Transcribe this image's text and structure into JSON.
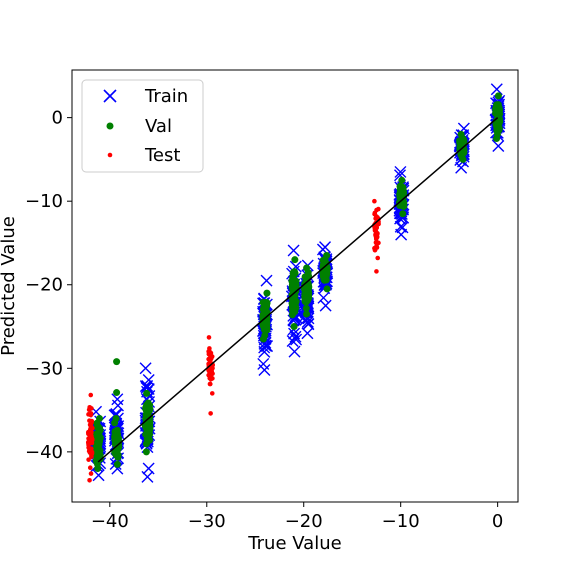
{
  "chart_data": {
    "type": "scatter",
    "title": "",
    "xlabel": "True Value",
    "ylabel": "Predicted Value",
    "xlim": [
      -43.9,
      2.1
    ],
    "ylim": [
      -46.0,
      5.7
    ],
    "xticks": [
      -40,
      -30,
      -20,
      -10,
      0
    ],
    "yticks": [
      -40,
      -30,
      -20,
      -10,
      0
    ],
    "xtick_labels": [
      "−40",
      "−30",
      "−20",
      "−10",
      "0"
    ],
    "ytick_labels": [
      "−40",
      "−30",
      "−20",
      "−10",
      "0"
    ],
    "grid": false,
    "legend": {
      "placement": "top-left",
      "entries": [
        {
          "label": "Train",
          "marker": "x",
          "color": "#0000ff"
        },
        {
          "label": "Val",
          "marker": "o",
          "color": "#008000"
        },
        {
          "label": "Test",
          "marker": ".",
          "color": "#ff0000"
        }
      ]
    },
    "reference_line": {
      "from": [
        -41.2,
        -41.2
      ],
      "to": [
        0,
        0
      ],
      "color": "#000000"
    },
    "series": [
      {
        "name": "Train",
        "marker": "x",
        "color": "#0000ff",
        "groups": [
          {
            "x": 0.0,
            "y_range": [
              -3.4,
              3.4
            ]
          },
          {
            "x": -3.7,
            "y_range": [
              -6.0,
              -1.3
            ]
          },
          {
            "x": -9.9,
            "y_range": [
              -14.0,
              -6.5
            ]
          },
          {
            "x": -17.8,
            "y_range": [
              -22.5,
              -15.5
            ]
          },
          {
            "x": -19.7,
            "y_range": [
              -25.8,
              -17.7
            ]
          },
          {
            "x": -21.0,
            "y_range": [
              -28.0,
              -15.9
            ]
          },
          {
            "x": -24.0,
            "y_range": [
              -30.2,
              -19.5
            ]
          },
          {
            "x": -36.1,
            "y_range": [
              -43.0,
              -30.0
            ]
          },
          {
            "x": -39.3,
            "y_range": [
              -42.0,
              -33.7
            ]
          },
          {
            "x": -41.2,
            "y_range": [
              -42.8,
              -35.2
            ]
          }
        ]
      },
      {
        "name": "Val",
        "marker": "o",
        "color": "#008000",
        "groups": [
          {
            "x": 0.0,
            "y_range": [
              -2.5,
              2.6
            ]
          },
          {
            "x": -3.7,
            "y_range": [
              -5.0,
              -2.0
            ]
          },
          {
            "x": -9.9,
            "y_range": [
              -11.5,
              -7.5
            ]
          },
          {
            "x": -17.8,
            "y_range": [
              -20.5,
              -16.5
            ]
          },
          {
            "x": -19.7,
            "y_range": [
              -23.5,
              -18.0
            ]
          },
          {
            "x": -21.0,
            "y_range": [
              -25.0,
              -17.0
            ]
          },
          {
            "x": -24.0,
            "y_range": [
              -26.5,
              -21.0
            ]
          },
          {
            "x": -36.1,
            "y_range": [
              -40.0,
              -33.0
            ]
          },
          {
            "x": -39.3,
            "y_range": [
              -41.5,
              -36.0
            ]
          },
          {
            "x": -41.2,
            "y_range": [
              -42.0,
              -36.0
            ]
          }
        ],
        "points": [
          {
            "x": -39.3,
            "y": -29.2
          },
          {
            "x": -39.3,
            "y": -32.9
          }
        ]
      },
      {
        "name": "Test",
        "marker": ".",
        "color": "#ff0000",
        "groups": [
          {
            "x": -12.5,
            "y_range": [
              -16.8,
              -10.0
            ]
          },
          {
            "x": -29.6,
            "y_range": [
              -33.0,
              -26.3
            ]
          },
          {
            "x": -42.0,
            "y_range": [
              -43.4,
              -33.2
            ]
          }
        ],
        "points": [
          {
            "x": -12.5,
            "y": -18.4
          },
          {
            "x": -29.6,
            "y": -35.4
          }
        ]
      }
    ]
  }
}
